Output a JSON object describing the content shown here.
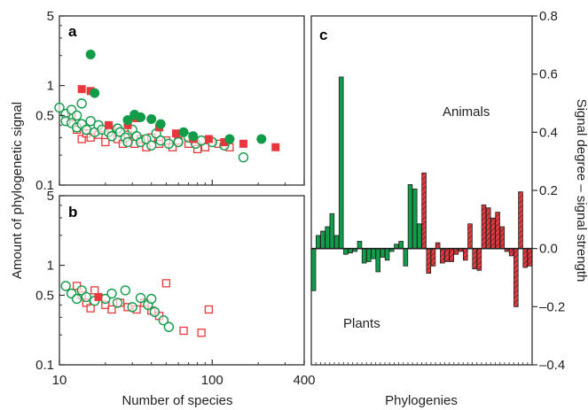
{
  "colors": {
    "animal": "#e8383d",
    "plant": "#119c4a",
    "frame": "#333333"
  },
  "shared": {
    "ylabel": "Amount of phylogenetic signal",
    "xlabel": "Number of species",
    "x_ticks": [
      "10",
      "100",
      "400"
    ],
    "y_ticks": [
      "0.1",
      "0.5",
      "1",
      "5"
    ]
  },
  "chart_data": [
    {
      "panel": "a",
      "type": "scatter",
      "label": "a",
      "xscale": "log",
      "yscale": "log",
      "xlim": [
        10,
        400
      ],
      "ylim": [
        0.1,
        5
      ],
      "series": [
        {
          "marker": "square-filled",
          "color": "#e8383d",
          "points": [
            [
              14,
              0.92
            ],
            [
              16,
              0.88
            ],
            [
              21,
              0.4
            ],
            [
              28,
              0.4
            ],
            [
              32,
              0.47
            ],
            [
              45,
              0.38
            ],
            [
              58,
              0.33
            ],
            [
              75,
              0.29
            ],
            [
              95,
              0.29
            ],
            [
              120,
              0.27
            ],
            [
              160,
              0.26
            ],
            [
              260,
              0.24
            ]
          ]
        },
        {
          "marker": "circle-filled",
          "color": "#119c4a",
          "points": [
            [
              16,
              2.05
            ],
            [
              17,
              0.84
            ],
            [
              28,
              0.45
            ],
            [
              31,
              0.51
            ],
            [
              34,
              0.48
            ],
            [
              40,
              0.46
            ],
            [
              46,
              0.41
            ],
            [
              65,
              0.34
            ],
            [
              75,
              0.31
            ],
            [
              130,
              0.29
            ],
            [
              210,
              0.29
            ]
          ]
        },
        {
          "marker": "square-open",
          "color": "#e8383d",
          "points": [
            [
              12,
              0.48
            ],
            [
              13,
              0.36
            ],
            [
              14,
              0.29
            ],
            [
              15,
              0.33
            ],
            [
              16,
              0.3
            ],
            [
              18,
              0.32
            ],
            [
              20,
              0.27
            ],
            [
              22,
              0.36
            ],
            [
              24,
              0.29
            ],
            [
              26,
              0.26
            ],
            [
              28,
              0.32
            ],
            [
              31,
              0.26
            ],
            [
              34,
              0.29
            ],
            [
              37,
              0.24
            ],
            [
              40,
              0.3
            ],
            [
              45,
              0.26
            ],
            [
              50,
              0.28
            ],
            [
              55,
              0.24
            ],
            [
              60,
              0.28
            ],
            [
              70,
              0.26
            ],
            [
              80,
              0.23
            ],
            [
              90,
              0.24
            ],
            [
              110,
              0.26
            ],
            [
              130,
              0.24
            ]
          ]
        },
        {
          "marker": "circle-open",
          "color": "#119c4a",
          "points": [
            [
              10,
              0.6
            ],
            [
              11,
              0.52
            ],
            [
              11,
              0.44
            ],
            [
              12,
              0.57
            ],
            [
              12,
              0.42
            ],
            [
              13,
              0.5
            ],
            [
              13,
              0.38
            ],
            [
              14,
              0.66
            ],
            [
              14,
              0.41
            ],
            [
              15,
              0.36
            ],
            [
              16,
              0.44
            ],
            [
              17,
              0.34
            ],
            [
              18,
              0.4
            ],
            [
              19,
              0.36
            ],
            [
              21,
              0.34
            ],
            [
              22,
              0.31
            ],
            [
              24,
              0.37
            ],
            [
              25,
              0.34
            ],
            [
              27,
              0.3
            ],
            [
              28,
              0.27
            ],
            [
              30,
              0.36
            ],
            [
              32,
              0.31
            ],
            [
              34,
              0.27
            ],
            [
              37,
              0.29
            ],
            [
              40,
              0.25
            ],
            [
              43,
              0.33
            ],
            [
              46,
              0.28
            ],
            [
              52,
              0.26
            ],
            [
              60,
              0.27
            ],
            [
              70,
              0.3
            ],
            [
              78,
              0.26
            ],
            [
              85,
              0.28
            ],
            [
              100,
              0.27
            ],
            [
              120,
              0.25
            ],
            [
              160,
              0.19
            ]
          ]
        }
      ]
    },
    {
      "panel": "b",
      "type": "scatter",
      "label": "b",
      "xscale": "log",
      "yscale": "log",
      "xlim": [
        10,
        400
      ],
      "ylim": [
        0.1,
        5
      ],
      "series": [
        {
          "marker": "square-filled",
          "color": "#e8383d",
          "points": [
            [
              18,
              0.48
            ]
          ]
        },
        {
          "marker": "square-open",
          "color": "#e8383d",
          "points": [
            [
              13,
              0.62
            ],
            [
              14,
              0.5
            ],
            [
              15,
              0.42
            ],
            [
              16,
              0.37
            ],
            [
              17,
              0.56
            ],
            [
              20,
              0.4
            ],
            [
              22,
              0.36
            ],
            [
              25,
              0.42
            ],
            [
              28,
              0.38
            ],
            [
              32,
              0.36
            ],
            [
              36,
              0.42
            ],
            [
              40,
              0.35
            ],
            [
              45,
              0.31
            ],
            [
              50,
              0.66
            ],
            [
              65,
              0.22
            ],
            [
              85,
              0.21
            ],
            [
              95,
              0.36
            ]
          ]
        },
        {
          "marker": "circle-open",
          "color": "#119c4a",
          "points": [
            [
              11,
              0.62
            ],
            [
              12,
              0.52
            ],
            [
              13,
              0.46
            ],
            [
              14,
              0.56
            ],
            [
              15,
              0.48
            ],
            [
              17,
              0.44
            ],
            [
              20,
              0.46
            ],
            [
              22,
              0.52
            ],
            [
              24,
              0.42
            ],
            [
              27,
              0.56
            ],
            [
              30,
              0.38
            ],
            [
              34,
              0.47
            ],
            [
              38,
              0.4
            ],
            [
              40,
              0.46
            ],
            [
              42,
              0.34
            ],
            [
              48,
              0.28
            ],
            [
              52,
              0.24
            ]
          ]
        }
      ]
    },
    {
      "panel": "c",
      "type": "bar",
      "label": "c",
      "xlabel": "Phylogenies",
      "ylabel": "Signal degree – signal strength",
      "ylim": [
        -0.4,
        0.8
      ],
      "y_ticks": [
        "–0.4",
        "–0.2",
        "0.0",
        "0.2",
        "0.4",
        "0.6",
        "0.8"
      ],
      "annotations": {
        "upper": "Animals",
        "lower": "Plants"
      },
      "series": [
        {
          "group": "plants",
          "color": "#119c4a",
          "pattern": "solid",
          "values": [
            -0.145,
            0.045,
            0.06,
            0.075,
            0.12,
            0.045,
            0.59,
            -0.02,
            -0.015,
            -0.01,
            0.025,
            -0.05,
            -0.045,
            -0.035,
            -0.08,
            -0.03,
            -0.04,
            -0.01,
            0.015,
            0.025,
            -0.06,
            0.22,
            0.205,
            0.085
          ]
        },
        {
          "group": "animals",
          "color": "#e8383d",
          "pattern": "hatched",
          "values": [
            0.26,
            -0.085,
            -0.06,
            0.02,
            -0.05,
            -0.045,
            -0.045,
            -0.02,
            -0.01,
            -0.04,
            0.085,
            -0.07,
            -0.075,
            0.15,
            0.14,
            0.105,
            0.125,
            0.075,
            -0.01,
            -0.025,
            -0.2,
            0.195,
            -0.065,
            -0.06
          ]
        }
      ]
    }
  ]
}
